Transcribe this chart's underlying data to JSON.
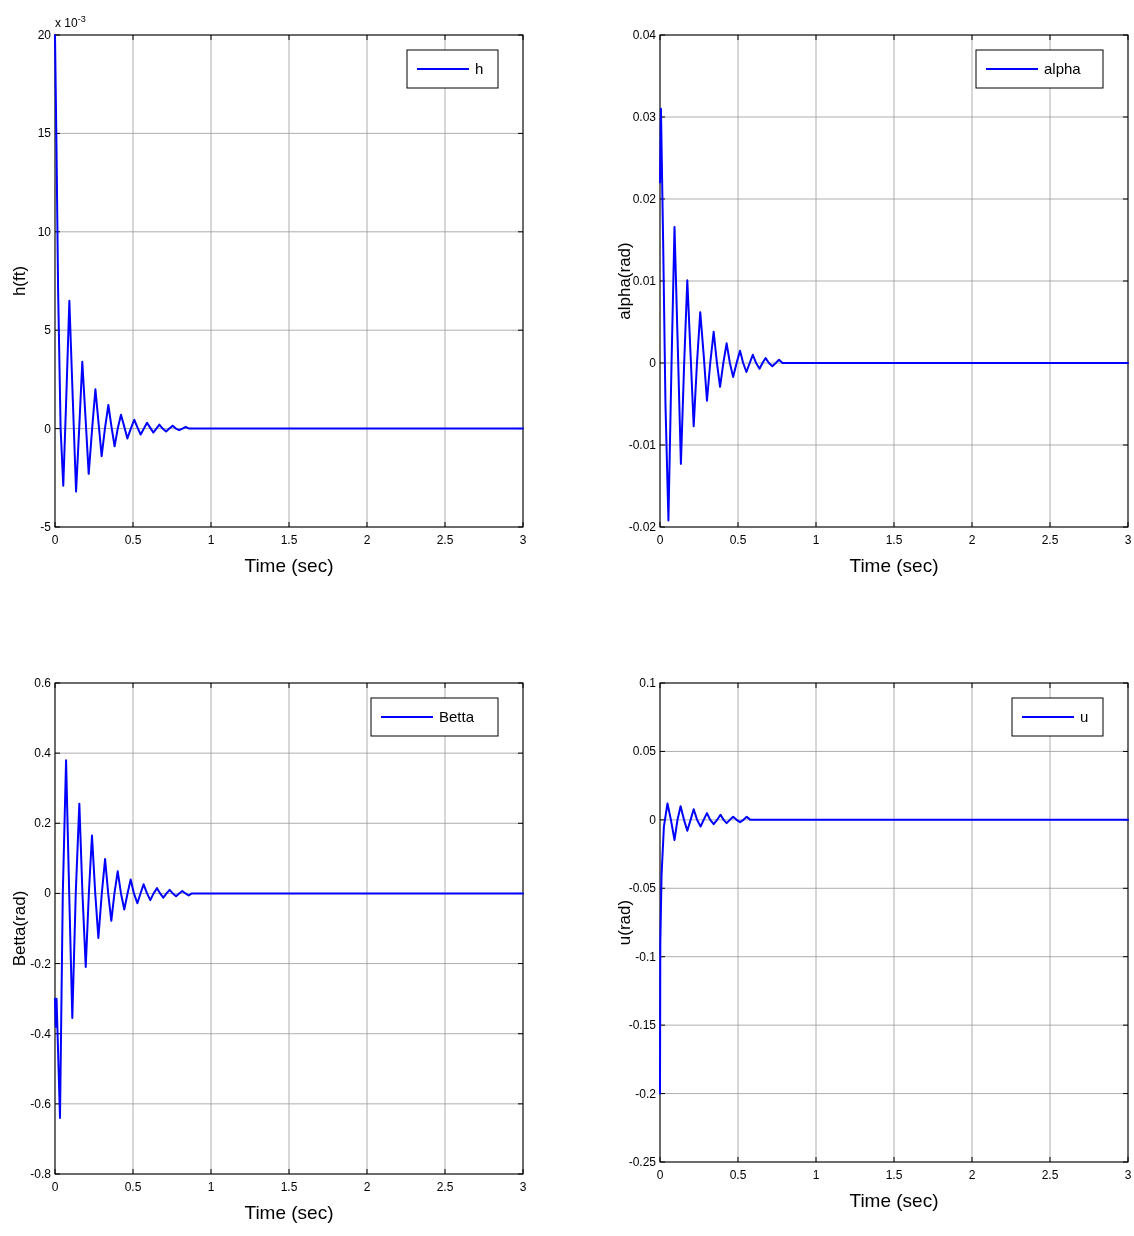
{
  "chart_data": [
    {
      "type": "line",
      "xlabel": "Time (sec)",
      "ylabel": "h(ft)",
      "annotations": [
        "x 10$^{-3}$"
      ],
      "grid": true,
      "legend": "top right",
      "xlim": [
        0,
        3
      ],
      "xticks": [
        0,
        0.5,
        1,
        1.5,
        2,
        2.5,
        3
      ],
      "ylim": [
        -5,
        20
      ],
      "yticks": [
        -5,
        0,
        5,
        10,
        15,
        20
      ],
      "series": [
        {
          "name": "h",
          "color": "#0000ff",
          "x": [
            0,
            0.01,
            0.02,
            0.036,
            0.053,
            0.072,
            0.092,
            0.114,
            0.135,
            0.155,
            0.175,
            0.196,
            0.216,
            0.238,
            0.259,
            0.279,
            0.299,
            0.32,
            0.342,
            0.362,
            0.382,
            0.402,
            0.423,
            0.444,
            0.464,
            0.486,
            0.508,
            0.529,
            0.549,
            0.57,
            0.59,
            0.61,
            0.63,
            0.65,
            0.669,
            0.69,
            0.712,
            0.733,
            0.754,
            0.775,
            0.796,
            0.817,
            0.838,
            0.86,
            3
          ],
          "values": [
            20,
            14,
            7,
            0,
            -2.9,
            1.5,
            6.5,
            1.5,
            -3.2,
            0,
            3.4,
            0.5,
            -2.3,
            0,
            2,
            0.3,
            -1.4,
            0,
            1.2,
            0.1,
            -0.9,
            0,
            0.7,
            0.1,
            -0.5,
            0,
            0.45,
            0.05,
            -0.3,
            0,
            0.3,
            0.05,
            -0.2,
            0,
            0.2,
            0,
            -0.15,
            0,
            0.15,
            0,
            -0.08,
            0,
            0.08,
            0,
            0
          ]
        }
      ]
    },
    {
      "type": "line",
      "xlabel": "Time (sec)",
      "ylabel": "alpha(rad)",
      "grid": true,
      "legend": "top right",
      "xlim": [
        0,
        3
      ],
      "xticks": [
        0,
        0.5,
        1,
        1.5,
        2,
        2.5,
        3
      ],
      "ylim": [
        -0.02,
        0.04
      ],
      "yticks": [
        -0.02,
        -0.01,
        0,
        0.01,
        0.02,
        0.03,
        0.04
      ],
      "series": [
        {
          "name": "alpha",
          "color": "#0000ff",
          "x": [
            0,
            0.006,
            0.02,
            0.035,
            0.054,
            0.074,
            0.093,
            0.114,
            0.134,
            0.155,
            0.175,
            0.196,
            0.216,
            0.237,
            0.258,
            0.28,
            0.301,
            0.322,
            0.344,
            0.365,
            0.385,
            0.406,
            0.427,
            0.448,
            0.469,
            0.491,
            0.513,
            0.533,
            0.554,
            0.575,
            0.595,
            0.616,
            0.638,
            0.657,
            0.677,
            0.698,
            0.72,
            0.742,
            0.763,
            0.785,
            3
          ],
          "values": [
            0.022,
            0.031,
            0.015,
            -0.005,
            -0.0192,
            0,
            0.0166,
            0.002,
            -0.0123,
            0,
            0.0101,
            0.001,
            -0.0077,
            0,
            0.0062,
            0.001,
            -0.0046,
            0,
            0.0038,
            0,
            -0.0029,
            0,
            0.0024,
            0,
            -0.0017,
            0,
            0.0015,
            0,
            -0.0011,
            0,
            0.001,
            0,
            -0.0007,
            0,
            0.0006,
            0,
            -0.0004,
            0,
            0.0004,
            0,
            0
          ]
        }
      ]
    },
    {
      "type": "line",
      "xlabel": "Time (sec)",
      "ylabel": "Betta(rad)",
      "grid": true,
      "legend": "top right",
      "xlim": [
        0,
        3
      ],
      "xticks": [
        0,
        0.5,
        1,
        1.5,
        2,
        2.5,
        3
      ],
      "ylim": [
        -0.8,
        0.6
      ],
      "yticks": [
        -0.8,
        -0.6,
        -0.4,
        -0.2,
        0,
        0.2,
        0.4,
        0.6
      ],
      "series": [
        {
          "name": "Betta",
          "color": "#0000ff",
          "x": [
            0,
            0.005,
            0.01,
            0.032,
            0.05,
            0.071,
            0.091,
            0.111,
            0.133,
            0.156,
            0.176,
            0.197,
            0.217,
            0.237,
            0.258,
            0.278,
            0.3,
            0.321,
            0.341,
            0.361,
            0.381,
            0.402,
            0.423,
            0.444,
            0.465,
            0.485,
            0.506,
            0.528,
            0.548,
            0.568,
            0.59,
            0.611,
            0.632,
            0.654,
            0.674,
            0.694,
            0.715,
            0.735,
            0.755,
            0.776,
            0.796,
            0.816,
            0.837,
            0.857,
            0.877,
            3
          ],
          "values": [
            -0.3,
            -0.38,
            -0.3,
            -0.64,
            0,
            0.38,
            0,
            -0.355,
            0,
            0.256,
            0,
            -0.21,
            0,
            0.165,
            0,
            -0.127,
            0,
            0.098,
            0,
            -0.078,
            0,
            0.063,
            0,
            -0.046,
            0,
            0.04,
            0,
            -0.028,
            0,
            0.026,
            0,
            -0.019,
            0,
            0.015,
            0,
            -0.012,
            0,
            0.01,
            0,
            -0.008,
            0,
            0.007,
            0,
            -0.006,
            0,
            0
          ]
        }
      ]
    },
    {
      "type": "line",
      "xlabel": "Time (sec)",
      "ylabel": "u(rad)",
      "grid": true,
      "legend": "top right",
      "xlim": [
        0,
        3
      ],
      "xticks": [
        0,
        0.5,
        1,
        1.5,
        2,
        2.5,
        3
      ],
      "ylim": [
        -0.25,
        0.1
      ],
      "yticks": [
        -0.25,
        -0.2,
        -0.15,
        -0.1,
        -0.05,
        0,
        0.05,
        0.1
      ],
      "series": [
        {
          "name": "u",
          "color": "#0000ff",
          "x": [
            0,
            0.002,
            0.01,
            0.025,
            0.048,
            0.07,
            0.093,
            0.112,
            0.132,
            0.154,
            0.175,
            0.196,
            0.216,
            0.238,
            0.26,
            0.28,
            0.301,
            0.322,
            0.344,
            0.366,
            0.388,
            0.408,
            0.427,
            0.448,
            0.469,
            0.491,
            0.513,
            0.535,
            0.556,
            0.58,
            3
          ],
          "values": [
            -0.2,
            -0.09,
            -0.04,
            -0.005,
            0.012,
            0,
            -0.0147,
            0,
            0.01,
            0,
            -0.008,
            0,
            0.0078,
            0,
            -0.0049,
            0,
            0.0049,
            0,
            -0.0032,
            0,
            0.0037,
            0,
            -0.0024,
            0,
            0.0022,
            0,
            -0.0017,
            0,
            0.0022,
            0,
            0
          ]
        }
      ]
    }
  ]
}
